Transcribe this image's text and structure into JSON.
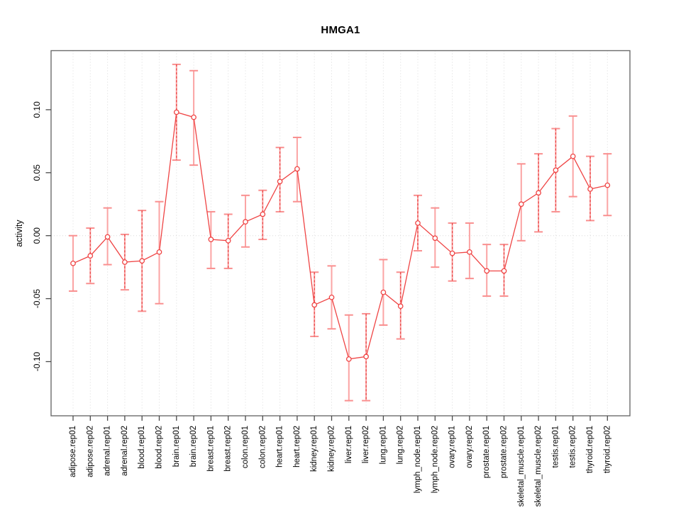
{
  "page": {
    "background": "#ffffff"
  },
  "chart_data": {
    "type": "line",
    "title": "HMGA1",
    "ylabel": "activity",
    "xlabel": "",
    "legend": "none",
    "grid": "vertical dotted gridline per category; dotted horizontal line at y=0",
    "marker": "open-circle",
    "categories": [
      "adipose.rep01",
      "adipose.rep02",
      "adrenal.rep01",
      "adrenal.rep02",
      "blood.rep01",
      "blood.rep02",
      "brain.rep01",
      "brain.rep02",
      "breast.rep01",
      "breast.rep02",
      "colon.rep01",
      "colon.rep02",
      "heart.rep01",
      "heart.rep02",
      "kidney.rep01",
      "kidney.rep02",
      "liver.rep01",
      "liver.rep02",
      "lung.rep01",
      "lung.rep02",
      "lymph_node.rep01",
      "lymph_node.rep02",
      "ovary.rep01",
      "ovary.rep02",
      "prostate.rep01",
      "prostate.rep02",
      "skeletal_muscle.rep01",
      "skeletal_muscle.rep02",
      "testis.rep01",
      "testis.rep02",
      "thyroid.rep01",
      "thyroid.rep02"
    ],
    "values": [
      -0.022,
      -0.016,
      -0.001,
      -0.021,
      -0.02,
      -0.013,
      0.098,
      0.094,
      -0.003,
      -0.004,
      0.011,
      0.017,
      0.043,
      0.053,
      -0.055,
      -0.049,
      -0.098,
      -0.096,
      -0.045,
      -0.056,
      0.01,
      -0.002,
      -0.014,
      -0.013,
      -0.028,
      -0.028,
      0.025,
      0.034,
      0.052,
      0.063,
      0.037,
      0.04
    ],
    "error_low": [
      -0.044,
      -0.038,
      -0.023,
      -0.043,
      -0.06,
      -0.054,
      0.06,
      0.056,
      -0.026,
      -0.026,
      -0.009,
      -0.003,
      0.019,
      0.027,
      -0.08,
      -0.074,
      -0.131,
      -0.131,
      -0.071,
      -0.082,
      -0.012,
      -0.025,
      -0.036,
      -0.034,
      -0.048,
      -0.048,
      -0.004,
      0.003,
      0.019,
      0.031,
      0.012,
      0.016
    ],
    "error_high": [
      0.0,
      0.006,
      0.022,
      0.001,
      0.02,
      0.027,
      0.136,
      0.131,
      0.019,
      0.017,
      0.032,
      0.036,
      0.07,
      0.078,
      -0.029,
      -0.024,
      -0.063,
      -0.062,
      -0.019,
      -0.029,
      0.032,
      0.022,
      0.01,
      0.01,
      -0.007,
      -0.007,
      0.057,
      0.065,
      0.085,
      0.095,
      0.063,
      0.065
    ],
    "dashed_bar": [
      false,
      true,
      false,
      true,
      true,
      false,
      true,
      false,
      false,
      true,
      false,
      true,
      true,
      false,
      true,
      false,
      false,
      true,
      false,
      true,
      true,
      false,
      true,
      false,
      false,
      true,
      false,
      true,
      true,
      false,
      true,
      false
    ],
    "ytick_labels": [
      "-0.10",
      "-0.05",
      "0.00",
      "0.05",
      "0.10"
    ],
    "yticks": [
      -0.1,
      -0.05,
      0.0,
      0.05,
      0.1
    ],
    "ylim": [
      -0.143,
      0.147
    ],
    "colors": {
      "line": "#ef4444",
      "marker": "#ef4444",
      "error_bar": "#fba4a4",
      "error_cap": "#f98f8f",
      "error_dash": "#e84040",
      "gridline": "#d9d9d9",
      "axis_box": "#6b6b6b",
      "tick": "#4a4a4a",
      "label_text": "#000000"
    }
  }
}
